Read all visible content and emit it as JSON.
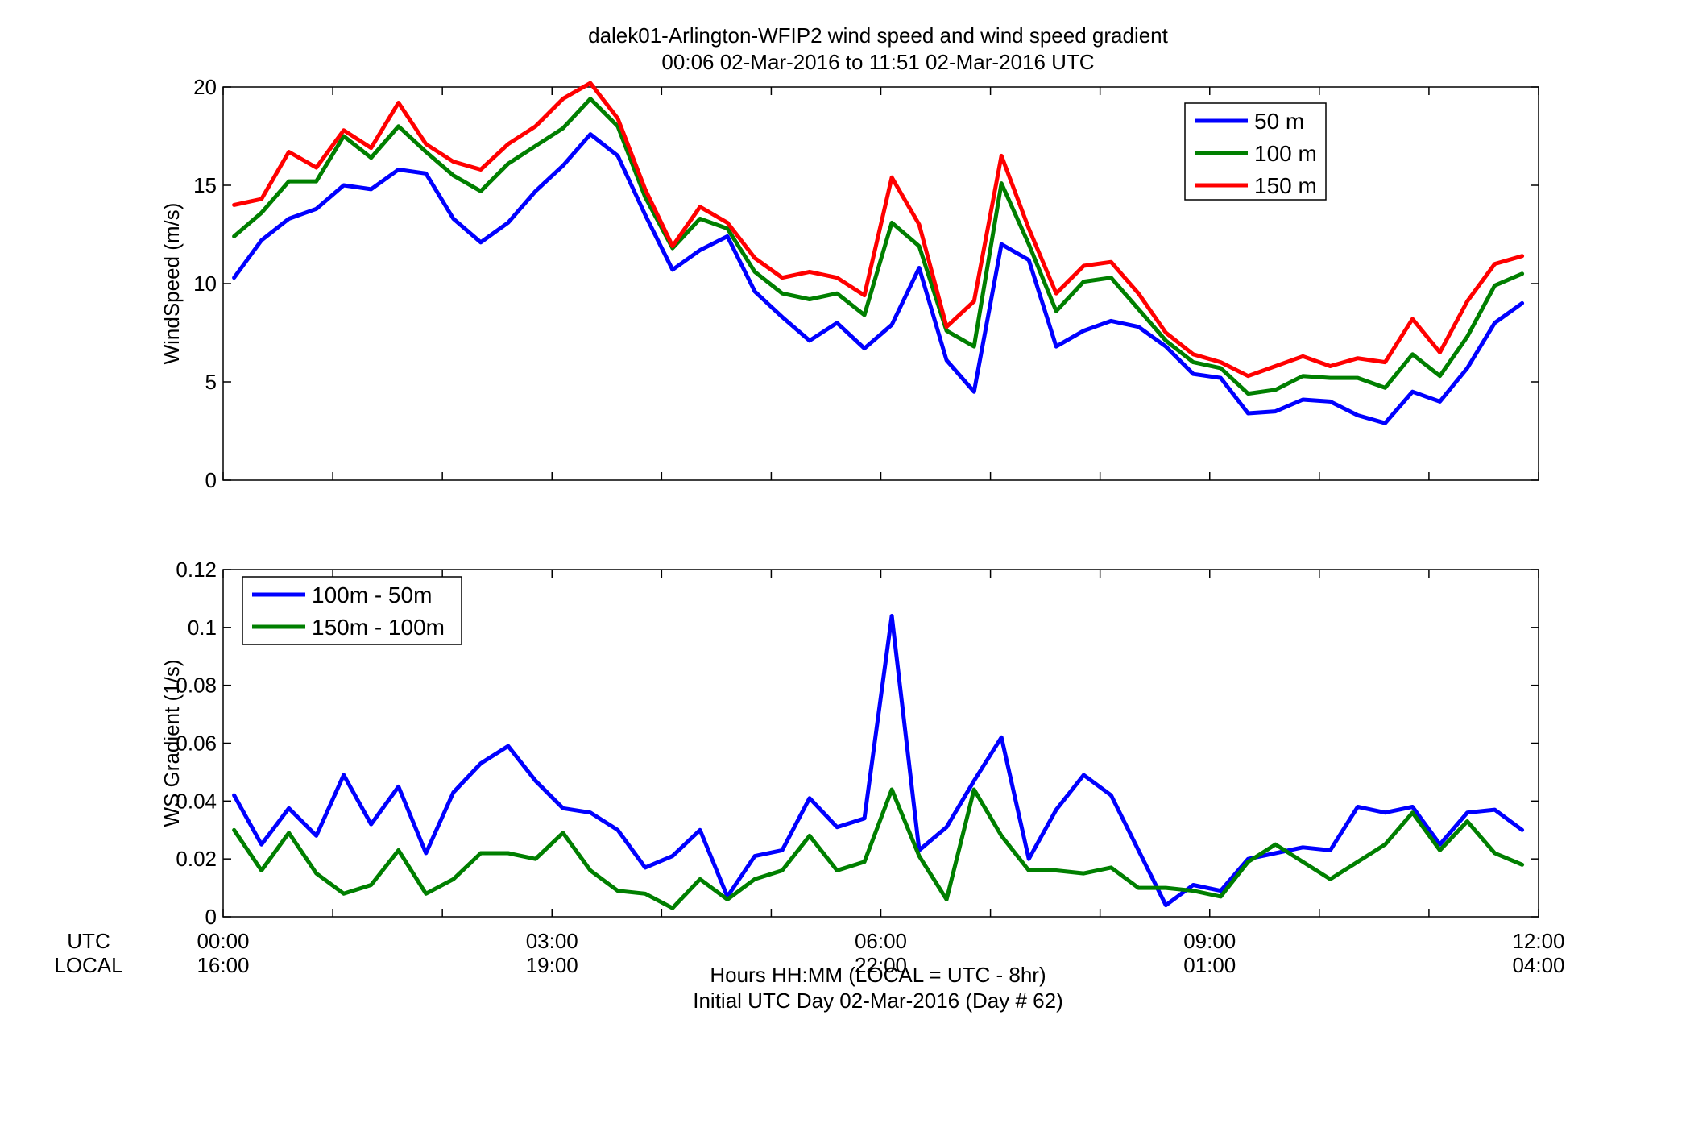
{
  "figure": {
    "title_line1": "dalek01-Arlington-WFIP2  wind speed and wind speed gradient",
    "title_line2": "00:06 02-Mar-2016 to 11:51 02-Mar-2016  UTC",
    "xlabel_line1": "Hours HH:MM  (LOCAL = UTC - 8hr)",
    "xlabel_line2": "Initial UTC Day 02-Mar-2016 (Day # 62)",
    "row_label_utc": "UTC",
    "row_label_local": "LOCAL"
  },
  "chart_data": [
    {
      "type": "line",
      "ylabel": "WindSpeed (m/s)",
      "xlim": [
        0,
        12
      ],
      "ylim": [
        0,
        20
      ],
      "yticks": [
        0,
        5,
        10,
        15,
        20
      ],
      "legend_position": "top-right",
      "x": [
        0.1,
        0.35,
        0.6,
        0.85,
        1.1,
        1.35,
        1.6,
        1.85,
        2.1,
        2.35,
        2.6,
        2.85,
        3.1,
        3.35,
        3.6,
        3.85,
        4.1,
        4.35,
        4.6,
        4.85,
        5.1,
        5.35,
        5.6,
        5.85,
        6.1,
        6.35,
        6.6,
        6.85,
        7.1,
        7.35,
        7.6,
        7.85,
        8.1,
        8.35,
        8.6,
        8.85,
        9.1,
        9.35,
        9.6,
        9.85,
        10.1,
        10.35,
        10.6,
        10.85,
        11.1,
        11.35,
        11.6,
        11.85
      ],
      "series": [
        {
          "name": "50 m",
          "color": "#0000ff",
          "values": [
            10.3,
            12.2,
            13.3,
            13.8,
            15.0,
            14.8,
            15.8,
            15.6,
            13.3,
            12.1,
            13.1,
            14.7,
            16.0,
            17.6,
            16.5,
            13.5,
            10.7,
            11.7,
            12.4,
            9.6,
            8.3,
            7.1,
            8.0,
            6.7,
            7.9,
            10.8,
            6.1,
            4.5,
            12.0,
            11.2,
            6.8,
            7.6,
            8.1,
            7.8,
            6.8,
            5.4,
            5.2,
            3.4,
            3.5,
            4.1,
            4.0,
            3.3,
            2.9,
            4.5,
            4.0,
            5.7,
            8.0,
            9.0
          ]
        },
        {
          "name": "100 m",
          "color": "#007f00",
          "values": [
            12.4,
            13.6,
            15.2,
            15.2,
            17.5,
            16.4,
            18.0,
            16.7,
            15.5,
            14.7,
            16.1,
            17.0,
            17.9,
            19.4,
            18.0,
            14.4,
            11.8,
            13.3,
            12.8,
            10.6,
            9.5,
            9.2,
            9.5,
            8.4,
            13.1,
            11.9,
            7.6,
            6.8,
            15.1,
            12.0,
            8.6,
            10.1,
            10.3,
            8.7,
            7.1,
            6.0,
            5.7,
            4.4,
            4.6,
            5.3,
            5.2,
            5.2,
            4.7,
            6.4,
            5.3,
            7.3,
            9.9,
            10.5
          ]
        },
        {
          "name": "150 m",
          "color": "#ff0000",
          "values": [
            14.0,
            14.3,
            16.7,
            15.9,
            17.8,
            16.9,
            19.2,
            17.1,
            16.2,
            15.8,
            17.1,
            18.0,
            19.4,
            20.2,
            18.4,
            14.8,
            11.9,
            13.9,
            13.1,
            11.3,
            10.3,
            10.6,
            10.3,
            9.4,
            15.4,
            13.0,
            7.8,
            9.1,
            16.5,
            12.8,
            9.5,
            10.9,
            11.1,
            9.5,
            7.5,
            6.4,
            6.0,
            5.3,
            5.8,
            6.3,
            5.8,
            6.2,
            6.0,
            8.2,
            6.5,
            9.1,
            11.0,
            11.4
          ]
        }
      ]
    },
    {
      "type": "line",
      "ylabel": "WS Gradient (1/s)",
      "xlim": [
        0,
        12
      ],
      "ylim": [
        0,
        0.12
      ],
      "yticks": [
        "0",
        "0.02",
        "0.04",
        "0.06",
        "0.08",
        "0.1",
        "0.12"
      ],
      "legend_position": "top-left",
      "xticks_utc": [
        "00:00",
        "03:00",
        "06:00",
        "09:00",
        "12:00"
      ],
      "xticks_local": [
        "16:00",
        "19:00",
        "22:00",
        "01:00",
        "04:00"
      ],
      "x": [
        0.1,
        0.35,
        0.6,
        0.85,
        1.1,
        1.35,
        1.6,
        1.85,
        2.1,
        2.35,
        2.6,
        2.85,
        3.1,
        3.35,
        3.6,
        3.85,
        4.1,
        4.35,
        4.6,
        4.85,
        5.1,
        5.35,
        5.6,
        5.85,
        6.1,
        6.35,
        6.6,
        6.85,
        7.1,
        7.35,
        7.6,
        7.85,
        8.1,
        8.35,
        8.6,
        8.85,
        9.1,
        9.35,
        9.6,
        9.85,
        10.1,
        10.35,
        10.6,
        10.85,
        11.1,
        11.35,
        11.6,
        11.85
      ],
      "series": [
        {
          "name": "100m - 50m",
          "color": "#0000ff",
          "values": [
            0.042,
            0.025,
            0.0375,
            0.028,
            0.049,
            0.032,
            0.045,
            0.022,
            0.043,
            0.053,
            0.059,
            0.047,
            0.0375,
            0.036,
            0.03,
            0.017,
            0.021,
            0.03,
            0.007,
            0.021,
            0.023,
            0.041,
            0.031,
            0.034,
            0.104,
            0.023,
            0.031,
            0.047,
            0.062,
            0.02,
            0.037,
            0.049,
            0.042,
            0.023,
            0.004,
            0.011,
            0.009,
            0.02,
            0.022,
            0.024,
            0.023,
            0.038,
            0.036,
            0.038,
            0.025,
            0.036,
            0.037,
            0.03
          ]
        },
        {
          "name": "150m - 100m",
          "color": "#007f00",
          "values": [
            0.03,
            0.016,
            0.029,
            0.015,
            0.008,
            0.011,
            0.023,
            0.008,
            0.013,
            0.022,
            0.022,
            0.02,
            0.029,
            0.016,
            0.009,
            0.008,
            0.003,
            0.013,
            0.006,
            0.013,
            0.016,
            0.028,
            0.016,
            0.019,
            0.044,
            0.021,
            0.006,
            0.044,
            0.028,
            0.016,
            0.016,
            0.015,
            0.017,
            0.01,
            0.01,
            0.009,
            0.007,
            0.019,
            0.025,
            0.019,
            0.013,
            0.019,
            0.025,
            0.036,
            0.023,
            0.033,
            0.022,
            0.018
          ]
        }
      ]
    }
  ]
}
